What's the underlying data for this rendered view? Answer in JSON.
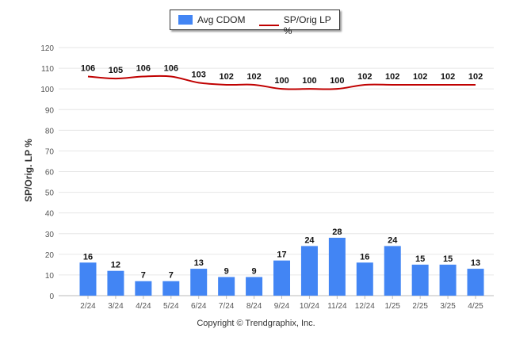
{
  "legend": {
    "bar_label": "Avg CDOM",
    "line_label": "SP/Orig LP %"
  },
  "credit": "Copyright © Trendgraphix, Inc.",
  "colors": {
    "bar": "#4285f4",
    "line": "#c00000",
    "grid": "#e6e6e6"
  },
  "chart_data": {
    "type": "bar",
    "ylabel": "SP/Orig. LP %",
    "ylim": [
      0,
      120
    ],
    "yticks": [
      0,
      10,
      20,
      30,
      40,
      50,
      60,
      70,
      80,
      90,
      100,
      110,
      120
    ],
    "grid": true,
    "legend_position": "top-center",
    "categories": [
      "2/24",
      "3/24",
      "4/24",
      "5/24",
      "6/24",
      "7/24",
      "8/24",
      "9/24",
      "10/24",
      "11/24",
      "12/24",
      "1/25",
      "2/25",
      "3/25",
      "4/25"
    ],
    "series": [
      {
        "name": "Avg CDOM",
        "type": "bar",
        "values": [
          16,
          12,
          7,
          7,
          13,
          9,
          9,
          17,
          24,
          28,
          16,
          24,
          15,
          15,
          13
        ]
      },
      {
        "name": "SP/Orig LP %",
        "type": "line",
        "values": [
          106,
          105,
          106,
          106,
          103,
          102,
          102,
          100,
          100,
          100,
          102,
          102,
          102,
          102,
          102
        ]
      }
    ]
  }
}
